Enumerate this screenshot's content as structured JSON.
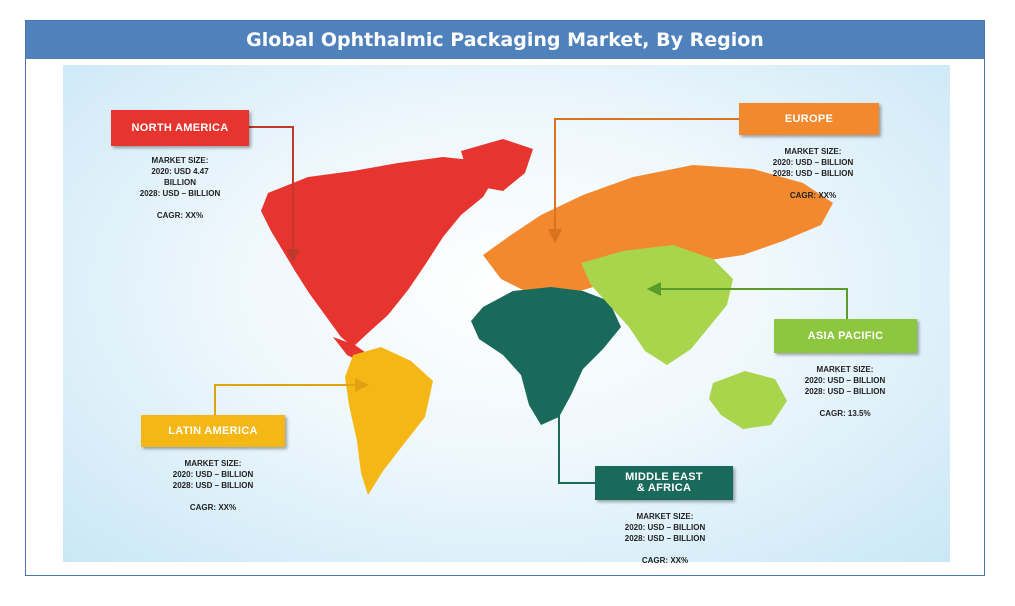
{
  "title": "Global Ophthalmic Packaging Market, By Region",
  "regions": {
    "north_america": {
      "name": "NORTH AMERICA",
      "market_size_label": "MARKET SIZE:",
      "line_2020": "2020: USD 4.47",
      "line_2020_cont": "BILLION",
      "line_2028": "2028: USD – BILLION",
      "cagr": "CAGR: XX%",
      "color": "#e8342e"
    },
    "europe": {
      "name": "EUROPE",
      "market_size_label": "MARKET SIZE:",
      "line_2020": "2020: USD – BILLION",
      "line_2028": "2028: USD – BILLION",
      "cagr": "CAGR: XX%",
      "color": "#f3892f"
    },
    "asia_pacific": {
      "name": "ASIA PACIFIC",
      "market_size_label": "MARKET SIZE:",
      "line_2020": "2020: USD – BILLION",
      "line_2028": "2028: USD – BILLION",
      "cagr": "CAGR: 13.5%",
      "color": "#8dc63f"
    },
    "latin_america": {
      "name": "LATIN AMERICA",
      "market_size_label": "MARKET SIZE:",
      "line_2020": "2020: USD – BILLION",
      "line_2028": "2028: USD – BILLION",
      "cagr": "CAGR: XX%",
      "color": "#f5b716"
    },
    "middle_east_africa": {
      "name_line1": "MIDDLE EAST",
      "name_line2": "& AFRICA",
      "market_size_label": "MARKET SIZE:",
      "line_2020": "2020: USD – BILLION",
      "line_2028": "2028: USD – BILLION",
      "cagr": "CAGR: XX%",
      "color": "#1a6a5c"
    }
  },
  "colors": {
    "title_bar": "#4f81bd",
    "border": "#4a76b0"
  }
}
